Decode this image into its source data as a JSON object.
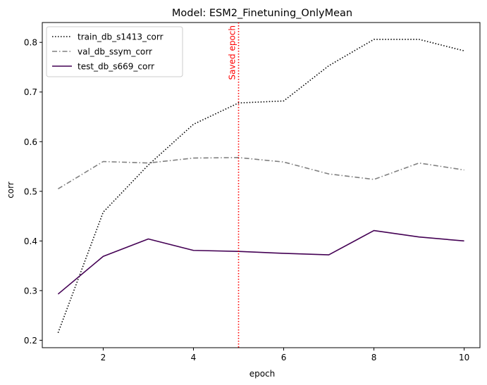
{
  "chart_data": {
    "type": "line",
    "title": "Model: ESM2_Finetuning_OnlyMean",
    "xlabel": "epoch",
    "ylabel": "corr",
    "xlim": [
      0.65,
      10.35
    ],
    "ylim": [
      0.185,
      0.84
    ],
    "xticks": [
      2,
      4,
      6,
      8,
      10
    ],
    "yticks": [
      0.2,
      0.3,
      0.4,
      0.5,
      0.6,
      0.7,
      0.8
    ],
    "grid": false,
    "legend_position": "top-left",
    "x": [
      1,
      2,
      3,
      4,
      5,
      6,
      7,
      8,
      9,
      10
    ],
    "series": [
      {
        "name": "train_db_s1413_corr",
        "values": [
          0.215,
          0.458,
          0.553,
          0.635,
          0.678,
          0.682,
          0.753,
          0.806,
          0.806,
          0.783
        ],
        "color": "#000000",
        "dash": "dotted"
      },
      {
        "name": "val_db_ssym_corr",
        "values": [
          0.505,
          0.56,
          0.557,
          0.567,
          0.568,
          0.559,
          0.535,
          0.524,
          0.557,
          0.543
        ],
        "color": "#808080",
        "dash": "dashdot"
      },
      {
        "name": "test_db_s669_corr",
        "values": [
          0.293,
          0.369,
          0.404,
          0.381,
          0.379,
          0.375,
          0.372,
          0.421,
          0.408,
          0.4
        ],
        "color": "#440154",
        "dash": "solid"
      }
    ],
    "annotations": [
      {
        "type": "vline",
        "x": 5,
        "label": "Saved epoch",
        "color": "#ff0000",
        "dash": "dotted"
      }
    ]
  }
}
